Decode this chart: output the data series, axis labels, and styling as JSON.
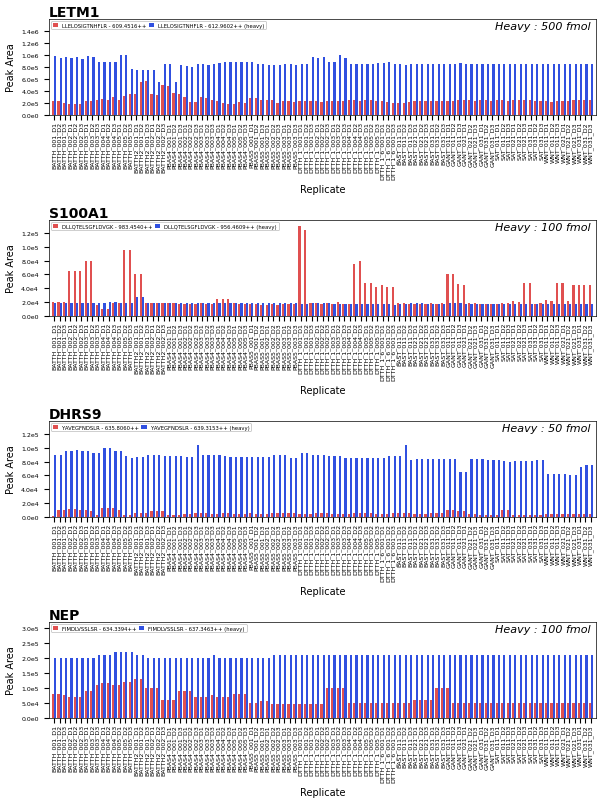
{
  "panels": [
    {
      "title": "LETM1",
      "heavy_label": "Heavy : 500 fmol",
      "legend_red": "LLELOSIGTNHFLR - 609.4516++",
      "legend_blue": "LLELOSIGTNHFLR - 612.9602++ (heavy)",
      "ylim": [
        0,
        1600000.0
      ],
      "yticks": [
        0,
        200000.0,
        400000.0,
        600000.0,
        800000.0,
        1000000.0,
        1200000.0,
        1400000.0
      ],
      "red_values": [
        220000.0,
        220000.0,
        190000.0,
        170000.0,
        180000.0,
        170000.0,
        220000.0,
        220000.0,
        250000.0,
        260000.0,
        240000.0,
        290000.0,
        250000.0,
        310000.0,
        340000.0,
        350000.0,
        540000.0,
        560000.0,
        350000.0,
        330000.0,
        500000.0,
        480000.0,
        360000.0,
        350000.0,
        290000.0,
        210000.0,
        210000.0,
        300000.0,
        270000.0,
        250000.0,
        230000.0,
        200000.0,
        180000.0,
        170000.0,
        210000.0,
        190000.0,
        270000.0,
        270000.0,
        250000.0,
        240000.0,
        240000.0,
        200000.0,
        230000.0,
        230000.0,
        210000.0,
        220000.0,
        220000.0,
        230000.0,
        230000.0,
        210000.0,
        220000.0,
        220000.0,
        230000.0,
        230000.0,
        240000.0,
        250000.0,
        230000.0,
        250000.0,
        240000.0,
        230000.0,
        220000.0,
        210000.0,
        200000.0,
        190000.0,
        190000.0,
        210000.0,
        220000.0,
        220000.0,
        230000.0,
        230000.0,
        220000.0,
        220000.0,
        230000.0,
        230000.0,
        240000.0,
        250000.0,
        240000.0,
        230000.0,
        240000.0,
        240000.0,
        230000.0,
        240000.0,
        240000.0,
        230000.0,
        240000.0,
        250000.0,
        250000.0,
        240000.0,
        230000.0,
        220000.0,
        220000.0,
        210000.0,
        220000.0,
        230000.0,
        230000.0,
        240000.0,
        250000.0,
        250000.0,
        240000.0
      ],
      "blue_values": [
        980000.0,
        940000.0,
        960000.0,
        940000.0,
        960000.0,
        930000.0,
        970000.0,
        960000.0,
        870000.0,
        870000.0,
        870000.0,
        880000.0,
        990000.0,
        990000.0,
        760000.0,
        740000.0,
        750000.0,
        740000.0,
        750000.0,
        540000.0,
        850000.0,
        850000.0,
        550000.0,
        820000.0,
        810000.0,
        800000.0,
        840000.0,
        840000.0,
        830000.0,
        850000.0,
        860000.0,
        870000.0,
        870000.0,
        880000.0,
        870000.0,
        870000.0,
        870000.0,
        850000.0,
        840000.0,
        830000.0,
        830000.0,
        830000.0,
        850000.0,
        850000.0,
        830000.0,
        840000.0,
        850000.0,
        960000.0,
        950000.0,
        960000.0,
        880000.0,
        880000.0,
        990000.0,
        940000.0,
        850000.0,
        850000.0,
        840000.0,
        850000.0,
        850000.0,
        860000.0,
        860000.0,
        870000.0,
        850000.0,
        840000.0,
        830000.0,
        850000.0,
        840000.0,
        850000.0,
        840000.0,
        850000.0,
        850000.0,
        840000.0,
        840000.0,
        850000.0,
        860000.0,
        850000.0,
        850000.0,
        840000.0,
        840000.0,
        840000.0,
        850000.0,
        840000.0,
        850000.0,
        850000.0,
        840000.0,
        850000.0,
        850000.0,
        850000.0,
        850000.0,
        840000.0,
        840000.0,
        840000.0,
        850000.0,
        840000.0,
        840000.0,
        840000.0,
        840000.0,
        840000.0,
        840000.0
      ]
    },
    {
      "title": "S100A1",
      "heavy_label": "Heavy : 100 fmol",
      "legend_red": "DLLQTELSGFLDVGK - 983.4540++",
      "legend_blue": "DLLQTELSGFLDVGK - 956.4609++ (heavy)",
      "ylim": [
        0,
        140000.0
      ],
      "yticks": [
        0,
        20000.0,
        40000.0,
        60000.0,
        80000.0,
        100000.0,
        120000.0
      ],
      "red_values": [
        20000.0,
        20000.0,
        20000.0,
        65000.0,
        65000.0,
        65000.0,
        80000.0,
        80000.0,
        15000.0,
        9000.0,
        9000.0,
        18000.0,
        18000.0,
        95000.0,
        95000.0,
        60000.0,
        60000.0,
        19000.0,
        19000.0,
        19000.0,
        18000.0,
        18000.0,
        18000.0,
        17000.0,
        17000.0,
        17000.0,
        17000.0,
        18000.0,
        17000.0,
        17000.0,
        24000.0,
        24000.0,
        24000.0,
        18000.0,
        17000.0,
        17000.0,
        17000.0,
        17000.0,
        16000.0,
        16000.0,
        17000.0,
        16000.0,
        17000.0,
        17000.0,
        17000.0,
        130000.0,
        125000.0,
        18000.0,
        18000.0,
        17000.0,
        18000.0,
        17000.0,
        20000.0,
        17000.0,
        17000.0,
        75000.0,
        80000.0,
        47000.0,
        47000.0,
        42000.0,
        45000.0,
        42000.0,
        42000.0,
        18000.0,
        18000.0,
        17000.0,
        17000.0,
        17000.0,
        17000.0,
        18000.0,
        17000.0,
        18000.0,
        60000.0,
        60000.0,
        46000.0,
        45000.0,
        18000.0,
        18000.0,
        17000.0,
        17000.0,
        17000.0,
        17000.0,
        18000.0,
        18000.0,
        22000.0,
        20000.0,
        47000.0,
        47000.0,
        17000.0,
        18000.0,
        23000.0,
        22000.0,
        47000.0,
        48000.0,
        21000.0,
        45000.0,
        45000.0,
        44000.0,
        45000.0
      ],
      "blue_values": [
        19000.0,
        19000.0,
        19000.0,
        19000.0,
        19000.0,
        19000.0,
        19000.0,
        19000.0,
        19000.0,
        19000.0,
        20000.0,
        20000.0,
        19000.0,
        19000.0,
        19000.0,
        27000.0,
        27000.0,
        19000.0,
        19000.0,
        19000.0,
        19000.0,
        19000.0,
        18000.0,
        18000.0,
        18000.0,
        18000.0,
        18000.0,
        18000.0,
        18000.0,
        18000.0,
        18000.0,
        18000.0,
        18000.0,
        18000.0,
        18000.0,
        18000.0,
        18000.0,
        18000.0,
        18000.0,
        18000.0,
        18000.0,
        18000.0,
        18000.0,
        18000.0,
        18000.0,
        17000.0,
        17000.0,
        18000.0,
        18000.0,
        18000.0,
        18000.0,
        17000.0,
        17000.0,
        17000.0,
        17000.0,
        17000.0,
        17000.0,
        17000.0,
        17000.0,
        17000.0,
        17000.0,
        17000.0,
        16000.0,
        17000.0,
        17000.0,
        18000.0,
        18000.0,
        18000.0,
        17000.0,
        17000.0,
        17000.0,
        17000.0,
        18000.0,
        18000.0,
        18000.0,
        17000.0,
        17000.0,
        17000.0,
        17000.0,
        17000.0,
        17000.0,
        17000.0,
        17000.0,
        17000.0,
        17000.0,
        17000.0,
        17000.0,
        17000.0,
        17000.0,
        17000.0,
        17000.0,
        17000.0,
        17000.0,
        17000.0,
        17000.0,
        17000.0,
        17000.0,
        17000.0,
        17000.0
      ]
    },
    {
      "title": "DHRS9",
      "heavy_label": "Heavy : 50 fmol",
      "legend_red": "YAVEGFNDSLR - 635.8060++",
      "legend_blue": "YAVEGFNDSLR - 639.3153++ (heavy)",
      "ylim": [
        0,
        140000.0
      ],
      "yticks": [
        0,
        20000.0,
        40000.0,
        60000.0,
        80000.0,
        100000.0,
        120000.0
      ],
      "red_values": [
        1000.0,
        9000.0,
        9000.0,
        11000.0,
        11000.0,
        10000.0,
        10000.0,
        8000.0,
        3000.0,
        13000.0,
        13000.0,
        12500.0,
        10000.0,
        3000.0,
        3000.0,
        5000.0,
        5000.0,
        5000.0,
        8000.0,
        8000.0,
        8000.0,
        3000.0,
        3000.0,
        3000.0,
        4000.0,
        4000.0,
        5000.0,
        5000.0,
        5000.0,
        4000.0,
        4000.0,
        5000.0,
        5000.0,
        4000.0,
        4000.0,
        4000.0,
        5000.0,
        4000.0,
        4000.0,
        4000.0,
        5000.0,
        5000.0,
        5000.0,
        5000.0,
        5000.0,
        4000.0,
        4000.0,
        4000.0,
        5000.0,
        5000.0,
        5000.0,
        4000.0,
        4000.0,
        4000.0,
        4000.0,
        5000.0,
        5000.0,
        5000.0,
        5000.0,
        4000.0,
        4000.0,
        4000.0,
        5000.0,
        5000.0,
        5000.0,
        5000.0,
        4000.0,
        4000.0,
        4000.0,
        5000.0,
        5000.0,
        5000.0,
        9000.0,
        9000.0,
        8000.0,
        8000.0,
        4000.0,
        4000.0,
        3000.0,
        3000.0,
        3000.0,
        3000.0,
        9000.0,
        9000.0,
        3000.0,
        3000.0,
        3000.0,
        3000.0,
        3000.0,
        3000.0,
        4000.0,
        4000.0,
        4000.0,
        4000.0,
        4000.0,
        4000.0,
        4000.0,
        4000.0,
        4000.0
      ],
      "blue_values": [
        90000.0,
        90000.0,
        95000.0,
        95000.0,
        97000.0,
        96000.0,
        95000.0,
        93000.0,
        93000.0,
        100000.0,
        100000.0,
        95000.0,
        95000.0,
        88000.0,
        85000.0,
        87000.0,
        87000.0,
        90000.0,
        90000.0,
        90000.0,
        88000.0,
        88000.0,
        88000.0,
        88000.0,
        87000.0,
        87000.0,
        105000.0,
        90000.0,
        90000.0,
        90000.0,
        90000.0,
        89000.0,
        87000.0,
        87000.0,
        87000.0,
        87000.0,
        87000.0,
        87000.0,
        87000.0,
        87000.0,
        90000.0,
        90000.0,
        90000.0,
        85000.0,
        85000.0,
        92000.0,
        92000.0,
        90000.0,
        90000.0,
        90000.0,
        88000.0,
        88000.0,
        88000.0,
        86000.0,
        86000.0,
        86000.0,
        86000.0,
        86000.0,
        86000.0,
        85000.0,
        85000.0,
        88000.0,
        88000.0,
        88000.0,
        104000.0,
        83000.0,
        84000.0,
        84000.0,
        84000.0,
        84000.0,
        84000.0,
        84000.0,
        84000.0,
        84000.0,
        65000.0,
        65000.0,
        84000.0,
        84000.0,
        84000.0,
        83000.0,
        83000.0,
        83000.0,
        81000.0,
        80000.0,
        81000.0,
        81000.0,
        81000.0,
        81000.0,
        82000.0,
        82000.0,
        62000.0,
        62000.0,
        62000.0,
        62000.0,
        60000.0,
        60000.0,
        72000.0,
        75000.0,
        75000.0
      ]
    },
    {
      "title": "NEP",
      "heavy_label": "Heavy : 100 fmol",
      "legend_red": "FIMDLVSSLSR - 634.3394++",
      "legend_blue": "FIMDLVSSLSR - 637.3463++ (heavy)",
      "ylim": [
        0,
        320000.0
      ],
      "yticks": [
        0,
        50000.0,
        100000.0,
        150000.0,
        200000.0,
        250000.0,
        300000.0
      ],
      "red_values": [
        80000.0,
        80000.0,
        75000.0,
        70000.0,
        70000.0,
        70000.0,
        90000.0,
        90000.0,
        110000.0,
        115000.0,
        115000.0,
        110000.0,
        110000.0,
        120000.0,
        120000.0,
        130000.0,
        130000.0,
        100000.0,
        100000.0,
        100000.0,
        60000.0,
        60000.0,
        60000.0,
        90000.0,
        90000.0,
        90000.0,
        70000.0,
        70000.0,
        70000.0,
        75000.0,
        70000.0,
        70000.0,
        70000.0,
        80000.0,
        80000.0,
        80000.0,
        50000.0,
        50000.0,
        55000.0,
        55000.0,
        45000.0,
        45000.0,
        45000.0,
        45000.0,
        45000.0,
        45000.0,
        45000.0,
        45000.0,
        45000.0,
        45000.0,
        100000.0,
        100000.0,
        100000.0,
        100000.0,
        50000.0,
        50000.0,
        50000.0,
        50000.0,
        50000.0,
        50000.0,
        50000.0,
        50000.0,
        50000.0,
        50000.0,
        50000.0,
        50000.0,
        60000.0,
        60000.0,
        60000.0,
        60000.0,
        100000.0,
        100000.0,
        100000.0,
        50000.0,
        50000.0,
        50000.0,
        50000.0,
        50000.0,
        50000.0,
        50000.0,
        50000.0,
        50000.0,
        50000.0,
        50000.0,
        50000.0,
        50000.0,
        50000.0,
        50000.0,
        50000.0,
        50000.0,
        50000.0,
        50000.0,
        50000.0,
        50000.0,
        50000.0,
        50000.0,
        50000.0,
        50000.0,
        50000.0
      ],
      "blue_values": [
        200000.0,
        200000.0,
        200000.0,
        200000.0,
        200000.0,
        200000.0,
        200000.0,
        200000.0,
        210000.0,
        210000.0,
        210000.0,
        220000.0,
        220000.0,
        220000.0,
        220000.0,
        210000.0,
        210000.0,
        200000.0,
        200000.0,
        200000.0,
        200000.0,
        200000.0,
        200000.0,
        200000.0,
        200000.0,
        200000.0,
        200000.0,
        200000.0,
        200000.0,
        210000.0,
        200000.0,
        200000.0,
        200000.0,
        200000.0,
        200000.0,
        200000.0,
        200000.0,
        200000.0,
        200000.0,
        200000.0,
        210000.0,
        210000.0,
        210000.0,
        210000.0,
        210000.0,
        210000.0,
        210000.0,
        210000.0,
        210000.0,
        210000.0,
        210000.0,
        210000.0,
        210000.0,
        210000.0,
        210000.0,
        210000.0,
        210000.0,
        210000.0,
        210000.0,
        210000.0,
        210000.0,
        210000.0,
        210000.0,
        210000.0,
        210000.0,
        210000.0,
        210000.0,
        210000.0,
        210000.0,
        210000.0,
        210000.0,
        210000.0,
        210000.0,
        210000.0,
        210000.0,
        210000.0,
        210000.0,
        210000.0,
        210000.0,
        210000.0,
        210000.0,
        210000.0,
        210000.0,
        210000.0,
        210000.0,
        210000.0,
        210000.0,
        210000.0,
        210000.0,
        210000.0,
        210000.0,
        210000.0,
        210000.0,
        210000.0,
        210000.0,
        210000.0,
        210000.0,
        210000.0,
        210000.0
      ]
    }
  ],
  "x_labels": [
    "BATTH_001_D1",
    "BATTH_001_D2",
    "BATTH_001_D3",
    "BATTH_002_D1",
    "BATTH_002_D2",
    "BATTH_002_D3",
    "BATTH_003_D1",
    "BATTH_003_D2",
    "BATTH_003_D3",
    "BATTH_004_D1",
    "BATTH_004_D2",
    "BATTH_004_D3",
    "BATTH_005_D1",
    "BATTH_005_D2",
    "BATTH_005_D3",
    "BATTH2_001_D1",
    "BATTH2_001_D2",
    "BATTH2_001_D3",
    "BATTH2_002_D1",
    "BATTH2_002_D2",
    "BATTH2_002_D3",
    "PBAS4_001_D1",
    "PBAS4_001_D2",
    "PBAS4_001_D3",
    "PBAS4_002_D1",
    "PBAS4_002_D2",
    "PBAS4_002_D3",
    "PBAS4_003_D1",
    "PBAS4_003_D2",
    "PBAS4_003_D3",
    "PBAS4_004_D1",
    "PBAS4_004_D2",
    "PBAS4_004_D3",
    "PBAS4_005_D1",
    "PBAS4_005_D2",
    "PBAS4_005_D3",
    "PBAS5_001_D1",
    "PBAS5_001_D2",
    "PBAS5_001_D3",
    "PBAS5_002_D1",
    "PBAS5_002_D2",
    "PBAS5_002_D3",
    "PBAS5_003_D1",
    "PBAS5_003_D2",
    "PBAS5_003_D3",
    "DTTH_1_001_D1",
    "DTTH_1_001_D2",
    "DTTH_1_001_D3",
    "DTTH_1_002_D1",
    "DTTH_1_002_D2",
    "DTTH_1_002_D3",
    "DTTH_1_003_D1",
    "DTTH_1_003_D2",
    "DTTH_1_003_D3",
    "DTTH_1_004_D1",
    "DTTH_1_004_D2",
    "DTTH_1_004_D3",
    "DTTH_1_005_D1",
    "DTTH_1_005_D2",
    "DTTH_1_005_D3",
    "DTTH_1_6_001_D1",
    "DTTH_1_6_001_D2",
    "DTTH_1_6_001_D3",
    "BAST_011_D1",
    "BAST_011_D2",
    "BAST_011_D3",
    "BAST_021_D1",
    "BAST_021_D2",
    "BAST_021_D3",
    "BAST_031_D1",
    "BAST_031_D2",
    "BAST_031_D3",
    "GANT_011_D1",
    "GANT_011_D2",
    "GANT_011_D3",
    "GANT_021_D1",
    "GANT_021_D2",
    "GANT_021_D3",
    "GANT_031_D1",
    "GANT_031_D2",
    "GANT_031_D3",
    "SAT_011_D1",
    "SAT_011_D2",
    "SAT_011_D3",
    "SAT_021_D1",
    "SAT_021_D2",
    "SAT_021_D3",
    "SAT_031_D1",
    "SAT_031_D2",
    "SAT_031_D3",
    "WNT_011_D1",
    "WNT_011_D2",
    "WNT_011_D3",
    "WNT_021_D1",
    "WNT_021_D2",
    "WNT_021_D3",
    "WNT_031_D1",
    "WNT_031_D2",
    "WNT_031_D3"
  ],
  "bar_width": 0.4,
  "red_color": "#e05050",
  "blue_color": "#3050e0",
  "bg_color": "#ffffff",
  "title_fontsize": 10,
  "axis_fontsize": 7,
  "tick_fontsize": 4.5,
  "ylabel": "Peak Area",
  "xlabel": "Replicate"
}
